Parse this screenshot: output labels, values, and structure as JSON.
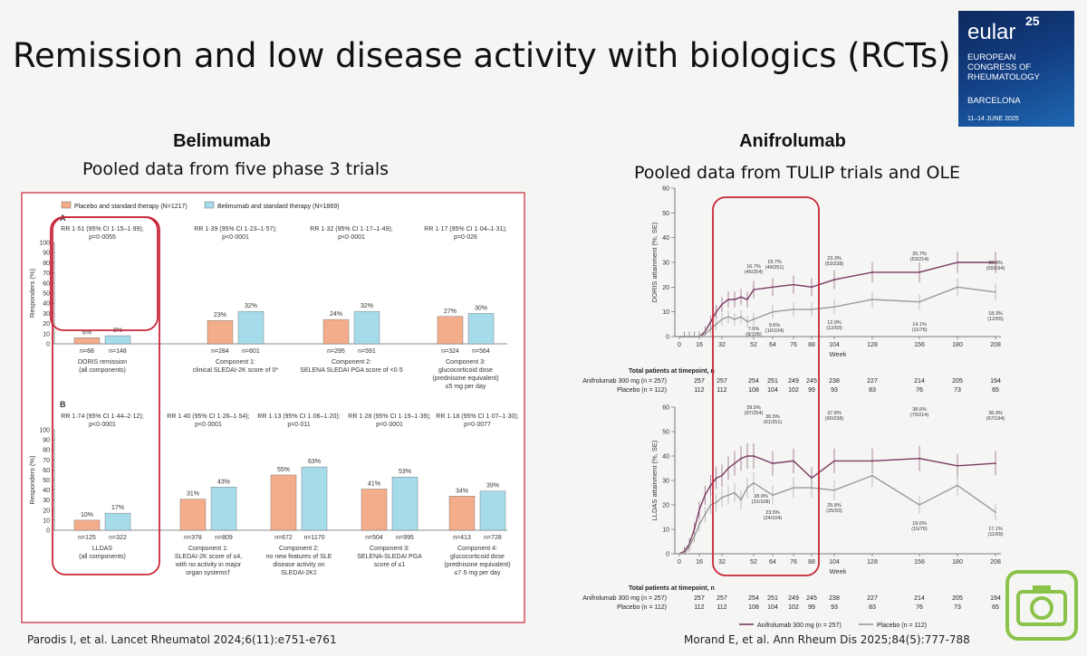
{
  "slide": {
    "title": "Remission and low disease activity with biologics (RCTs)"
  },
  "logo": {
    "brand": "eular",
    "year": "25",
    "line1": "EUROPEAN",
    "line2": "CONGRESS OF",
    "line3": "RHEUMATOLOGY",
    "city": "BARCELONA",
    "dates": "11–14 JUNE 2025"
  },
  "belimumab": {
    "title": "Belimumab",
    "subtitle": "Pooled data from five phase 3 trials",
    "reference": "Parodis I, et al. Lancet Rheumatol 2024;6(11):e751-e761"
  },
  "anifrolumab": {
    "title": "Anifrolumab",
    "subtitle": "Pooled data from TULIP trials and OLE",
    "reference": "Morand E, et al. Ann Rheum Dis 2025;84(5):777-788"
  },
  "chart_data": [
    {
      "type": "bar",
      "panel": "A",
      "legend": [
        "Placebo and standard therapy (N=1217)",
        "Belimumab and standard therapy (N=1869)"
      ],
      "ylabel": "Responders (%)",
      "ylim": [
        0,
        100
      ],
      "yticks": [
        "0",
        "10",
        "20",
        "30",
        "40",
        "50",
        "60",
        "70",
        "80",
        "90",
        "100"
      ],
      "groups": [
        {
          "rr": "RR 1·51 (95% CI 1·15–1·99);",
          "p": "p=0·0055",
          "placebo": 6,
          "belimumab": 8,
          "pl_label": "6%",
          "be_label": "8%",
          "n_pl": "n=68",
          "n_be": "n=148",
          "label": [
            "DORIS remission",
            "(all components)"
          ]
        },
        {
          "rr": "RR 1·39 (95% CI 1·23–1·57);",
          "p": "p<0·0001",
          "placebo": 23,
          "belimumab": 32,
          "pl_label": "23%",
          "be_label": "32%",
          "n_pl": "n=284",
          "n_be": "n=601",
          "label": [
            "Component 1:",
            "clinical SLEDAI-2K score of 0*"
          ]
        },
        {
          "rr": "RR 1·32 (95% CI 1·17–1·49);",
          "p": "p<0·0001",
          "placebo": 24,
          "belimumab": 32,
          "pl_label": "24%",
          "be_label": "32%",
          "n_pl": "n=295",
          "n_be": "n=591",
          "label": [
            "Component 2:",
            "SELENA SLEDAI PGA score of <0·5"
          ]
        },
        {
          "rr": "RR 1·17 (95% CI 1·04–1·31);",
          "p": "p=0·026",
          "placebo": 27,
          "belimumab": 30,
          "pl_label": "27%",
          "be_label": "30%",
          "n_pl": "n=324",
          "n_be": "n=564",
          "label": [
            "Component 3:",
            "glucocorticoid dose",
            "(prednisone equivalent)",
            "≤5 mg per day"
          ]
        }
      ]
    },
    {
      "type": "bar",
      "panel": "B",
      "ylabel": "Responders (%)",
      "ylim": [
        0,
        100
      ],
      "yticks": [
        "0",
        "10",
        "20",
        "30",
        "40",
        "50",
        "60",
        "70",
        "80",
        "90",
        "100"
      ],
      "groups": [
        {
          "rr": "RR 1·74 (95% CI 1·44–2·12);",
          "p": "p<0·0001",
          "placebo": 10,
          "belimumab": 17,
          "pl_label": "10%",
          "be_label": "17%",
          "n_pl": "n=125",
          "n_be": "n=322",
          "label": [
            "LLDAS",
            "(all components)"
          ]
        },
        {
          "rr": "RR 1·40 (95% CI 1·26–1·54);",
          "p": "p<0·0001",
          "placebo": 31,
          "belimumab": 43,
          "pl_label": "31%",
          "be_label": "43%",
          "n_pl": "n=378",
          "n_be": "n=809",
          "label": [
            "Component 1:",
            "SLEDAI-2K score of ≤4,",
            "with no activity in major",
            "organ systems†"
          ]
        },
        {
          "rr": "RR 1·13 (95% CI 1·06–1·20);",
          "p": "p=0·011",
          "placebo": 55,
          "belimumab": 63,
          "pl_label": "55%",
          "be_label": "63%",
          "n_pl": "n=672",
          "n_be": "n=1170",
          "label": [
            "Component 2:",
            "no new features of SLE",
            "disease activity on",
            "SLEDAI-2K‡"
          ]
        },
        {
          "rr": "RR 1·28 (95% CI 1·19–1·39);",
          "p": "p<0·0001",
          "placebo": 41,
          "belimumab": 53,
          "pl_label": "41%",
          "be_label": "53%",
          "n_pl": "n=504",
          "n_be": "n=995",
          "label": [
            "Component 3:",
            "SELENA-SLEDAI PGA",
            "score of ≤1"
          ]
        },
        {
          "rr": "RR 1·18 (95% CI 1·07–1·30);",
          "p": "p=0·0077",
          "placebo": 34,
          "belimumab": 39,
          "pl_label": "34%",
          "be_label": "39%",
          "n_pl": "n=413",
          "n_be": "n=728",
          "label": [
            "Component 4:",
            "glucocorticoid dose",
            "(prednisone equivalent)",
            "≤7·5 mg per day"
          ]
        }
      ]
    },
    {
      "type": "line",
      "ylabel": "DORIS attainment (%, SE)",
      "xlabel": "Week",
      "ylim": [
        0,
        60
      ],
      "yticks": [
        0,
        10,
        20,
        30,
        40,
        50,
        60
      ],
      "xticks": [
        0,
        16,
        32,
        52,
        64,
        76,
        88,
        104,
        128,
        156,
        180,
        208
      ],
      "series": [
        {
          "name": "Anifrolumab 300 mg (n = 257)",
          "color": "#7a3b63",
          "x": [
            0,
            4,
            8,
            12,
            16,
            20,
            24,
            28,
            32,
            36,
            40,
            44,
            48,
            52,
            64,
            76,
            88,
            104,
            128,
            156,
            180,
            208
          ],
          "y": [
            0,
            0,
            0,
            0,
            0,
            2,
            6,
            10,
            13,
            15,
            15,
            16,
            15,
            19,
            20,
            21,
            20,
            23,
            26,
            26,
            30,
            30
          ]
        },
        {
          "name": "Placebo (n = 112)",
          "color": "#9a9a9a",
          "x": [
            0,
            4,
            8,
            12,
            16,
            20,
            24,
            28,
            32,
            36,
            40,
            44,
            48,
            52,
            64,
            76,
            88,
            104,
            128,
            156,
            180,
            208
          ],
          "y": [
            0,
            0,
            0,
            0,
            0,
            1,
            3,
            5,
            7,
            8,
            7,
            8,
            6,
            7,
            10,
            11,
            11,
            12,
            15,
            14,
            20,
            18
          ]
        }
      ],
      "annotations": [
        "16.7% (45/254)",
        "19.7% (49/251)",
        "23.3% (53/238)",
        "25.7% (53/214)",
        "30.3% (59/194)",
        "7.6% (8/105)",
        "9.6% (10/104)",
        "12.9% (12/93)",
        "14.1% (11/76)",
        "18.3% (12/65)"
      ],
      "timepoint_header": "Total patients at timepoint, n",
      "timepoint_rows": [
        {
          "label": "Anifrolumab 300 mg (n = 257)",
          "values": [
            "257",
            "257",
            "254",
            "251",
            "249",
            "245",
            "238",
            "227",
            "214",
            "205",
            "194"
          ]
        },
        {
          "label": "Placebo (n = 112)",
          "values": [
            "112",
            "112",
            "108",
            "104",
            "102",
            "99",
            "93",
            "83",
            "76",
            "73",
            "65"
          ]
        }
      ]
    },
    {
      "type": "line",
      "ylabel": "LLDAS attainment (%, SE)",
      "xlabel": "Week",
      "ylim": [
        0,
        60
      ],
      "yticks": [
        0,
        10,
        20,
        30,
        40,
        50,
        60
      ],
      "xticks": [
        0,
        16,
        32,
        52,
        64,
        76,
        88,
        104,
        128,
        156,
        180,
        208
      ],
      "series": [
        {
          "name": "Anifrolumab 300 mg (n = 257)",
          "color": "#7a3b63",
          "x": [
            0,
            4,
            8,
            12,
            16,
            20,
            24,
            28,
            32,
            36,
            40,
            44,
            48,
            52,
            64,
            76,
            88,
            104,
            128,
            156,
            180,
            208
          ],
          "y": [
            0,
            1,
            4,
            10,
            18,
            24,
            28,
            31,
            32,
            35,
            37,
            39,
            40,
            40,
            37,
            38,
            31,
            38,
            38,
            39,
            36,
            37
          ]
        },
        {
          "name": "Placebo (n = 112)",
          "color": "#9a9a9a",
          "x": [
            0,
            4,
            8,
            12,
            16,
            20,
            24,
            28,
            32,
            36,
            40,
            44,
            48,
            52,
            64,
            76,
            88,
            104,
            128,
            156,
            180,
            208
          ],
          "y": [
            0,
            0,
            3,
            7,
            12,
            16,
            20,
            21,
            23,
            24,
            25,
            22,
            27,
            29,
            24,
            27,
            27,
            26,
            32,
            20,
            28,
            17
          ]
        }
      ],
      "annotations": [
        "39.5% (97/254)",
        "36.5% (91/251)",
        "37.8% (90/238)",
        "38.6% (79/214)",
        "36.9% (67/194)",
        "28.9% (31/108)",
        "23.5% (24/104)",
        "25.8% (25/93)",
        "19.6% (15/76)",
        "17.1% (11/65)"
      ],
      "timepoint_header": "Total patients at timepoint, n",
      "timepoint_rows": [
        {
          "label": "Anifrolumab 300 mg (n = 257)",
          "values": [
            "257",
            "257",
            "254",
            "251",
            "249",
            "245",
            "238",
            "227",
            "214",
            "205",
            "194"
          ]
        },
        {
          "label": "Placebo (n = 112)",
          "values": [
            "112",
            "112",
            "108",
            "104",
            "102",
            "99",
            "93",
            "83",
            "76",
            "73",
            "65"
          ]
        }
      ],
      "legend": [
        "Anifrolumab 300 mg (n = 257)",
        "Placebo (n = 112)"
      ]
    }
  ],
  "colors": {
    "placebo_bar": "#f4ad8a",
    "belimumab_bar": "#a6dcea",
    "highlight": "#c8263a",
    "anifrolumab_line": "#7a3b63",
    "placebo_line": "#9a9a9a"
  },
  "icons": {
    "camera": "camera-icon"
  }
}
